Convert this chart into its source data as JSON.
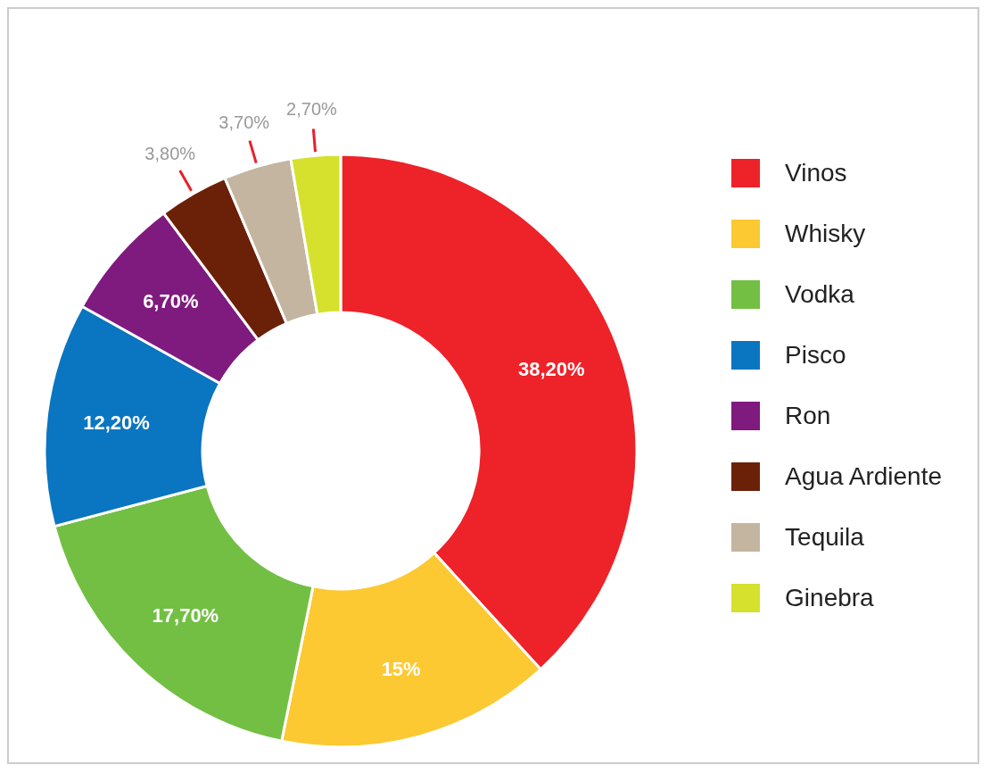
{
  "chart_data": {
    "type": "donut",
    "categories": [
      "Vinos",
      "Whisky",
      "Vodka",
      "Pisco",
      "Ron",
      "Agua Ardiente",
      "Tequila",
      "Ginebra"
    ],
    "values": [
      38.2,
      15,
      17.7,
      12.2,
      6.7,
      3.8,
      3.7,
      2.7
    ],
    "value_labels": [
      "38,20%",
      "15%",
      "17,70%",
      "12,20%",
      "6,70%",
      "3,80%",
      "3,70%",
      "2,70%"
    ],
    "colors": [
      "#ee2229",
      "#fcc933",
      "#72bf44",
      "#0a75c0",
      "#7f1a7e",
      "#6b2008",
      "#c4b5a0",
      "#d5e12c"
    ],
    "legend": "right"
  }
}
